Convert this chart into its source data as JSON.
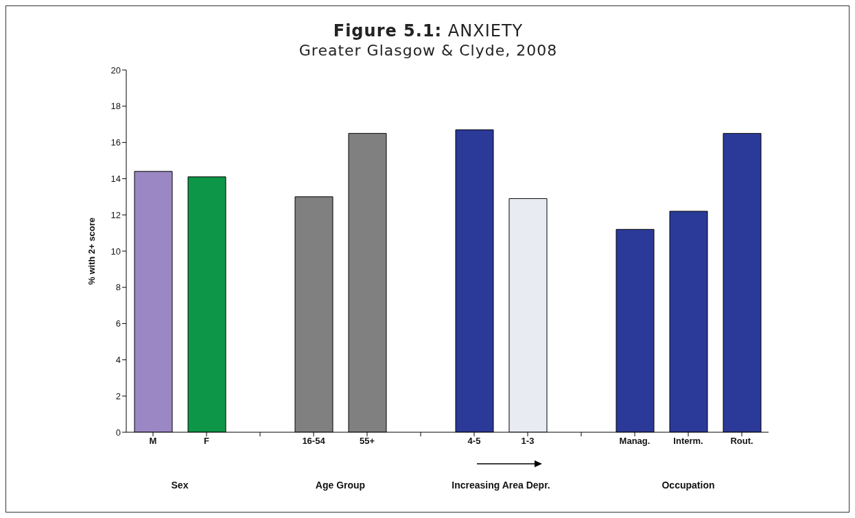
{
  "chart_data": {
    "type": "bar",
    "title": "Figure 5.1: ANXIETY",
    "subtitle": "Greater Glasgow & Clyde, 2008",
    "ylabel": "% with 2+ score",
    "categories": [
      "M",
      "F",
      null,
      "16-54",
      "55+",
      null,
      "4-5",
      "1-3",
      null,
      "Manag.",
      "Interm.",
      "Rout."
    ],
    "values": [
      14.4,
      14.1,
      null,
      13.0,
      16.5,
      null,
      16.7,
      12.9,
      null,
      11.2,
      12.2,
      16.5
    ],
    "colors": [
      "#9b87c4",
      "#0e9648",
      "#ffffff",
      "#808080",
      "#808080",
      "#ffffff",
      "#2b3a98",
      "#e8ecf2",
      "#ffffff",
      "#2b3a98",
      "#2b3a98",
      "#2b3a98"
    ],
    "ylim": [
      0,
      20
    ],
    "yticks": [
      0,
      2,
      4,
      6,
      8,
      10,
      12,
      14,
      16,
      18,
      20
    ],
    "grid": false,
    "annotations": [
      "Sex",
      "Age Group",
      "Increasing Area Depr.",
      "Occupation"
    ]
  }
}
